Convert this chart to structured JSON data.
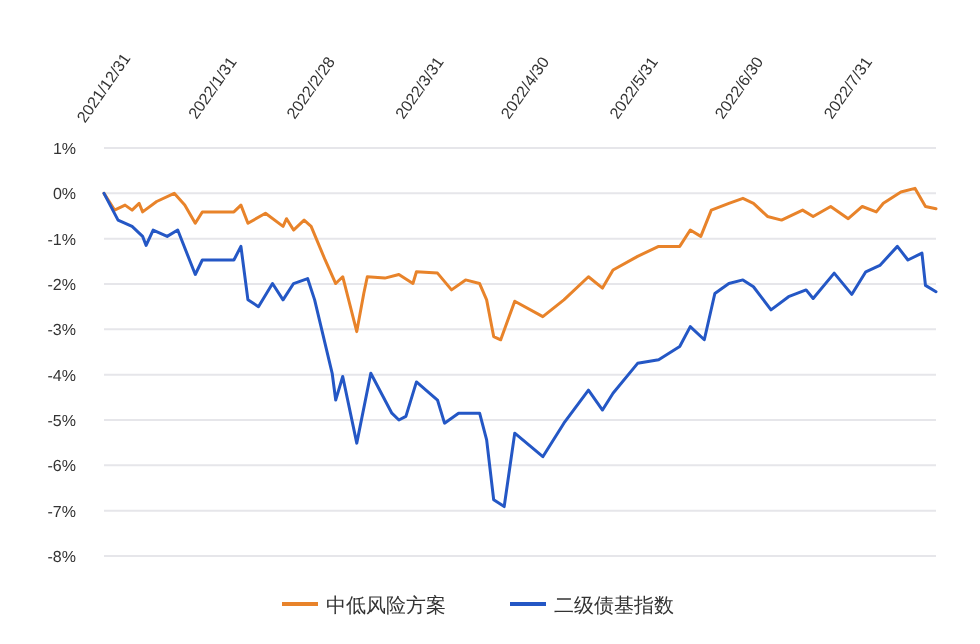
{
  "chart_data": {
    "type": "line",
    "xlim": [
      "2021-12-31",
      "2022-08-25"
    ],
    "ylim": [
      -8,
      1
    ],
    "xticks": [
      {
        "value": "2021-12-31",
        "label": "2021/12/31"
      },
      {
        "value": "2022-01-31",
        "label": "2022/1/31"
      },
      {
        "value": "2022-02-28",
        "label": "2022/2/28"
      },
      {
        "value": "2022-03-31",
        "label": "2022/3/31"
      },
      {
        "value": "2022-04-30",
        "label": "2022/4/30"
      },
      {
        "value": "2022-05-31",
        "label": "2022/5/31"
      },
      {
        "value": "2022-06-30",
        "label": "2022/6/30"
      },
      {
        "value": "2022-07-31",
        "label": "2022/7/31"
      }
    ],
    "yticks": [
      {
        "value": 1,
        "label": "1%"
      },
      {
        "value": 0,
        "label": "0%"
      },
      {
        "value": -1,
        "label": "-1%"
      },
      {
        "value": -2,
        "label": "-2%"
      },
      {
        "value": -3,
        "label": "-3%"
      },
      {
        "value": -4,
        "label": "-4%"
      },
      {
        "value": -5,
        "label": "-5%"
      },
      {
        "value": -6,
        "label": "-6%"
      },
      {
        "value": -7,
        "label": "-7%"
      },
      {
        "value": -8,
        "label": "-8%"
      }
    ],
    "grid": "y",
    "legend": "bottom",
    "series": [
      {
        "name": "中低风险方案",
        "color": "#e8832a",
        "x": [
          "2021-12-31",
          "2022-01-03",
          "2022-01-06",
          "2022-01-08",
          "2022-01-10",
          "2022-01-11",
          "2022-01-15",
          "2022-01-20",
          "2022-01-23",
          "2022-01-26",
          "2022-01-28",
          "2022-02-06",
          "2022-02-08",
          "2022-02-10",
          "2022-02-15",
          "2022-02-20",
          "2022-02-21",
          "2022-02-23",
          "2022-02-26",
          "2022-02-28",
          "2022-03-04",
          "2022-03-07",
          "2022-03-09",
          "2022-03-13",
          "2022-03-15",
          "2022-03-16",
          "2022-03-21",
          "2022-03-25",
          "2022-03-29",
          "2022-03-30",
          "2022-04-05",
          "2022-04-09",
          "2022-04-13",
          "2022-04-17",
          "2022-04-19",
          "2022-04-21",
          "2022-04-23",
          "2022-04-27",
          "2022-05-05",
          "2022-05-11",
          "2022-05-18",
          "2022-05-22",
          "2022-05-25",
          "2022-06-01",
          "2022-06-07",
          "2022-06-13",
          "2022-06-16",
          "2022-06-19",
          "2022-06-22",
          "2022-06-27",
          "2022-07-01",
          "2022-07-04",
          "2022-07-08",
          "2022-07-12",
          "2022-07-18",
          "2022-07-21",
          "2022-07-26",
          "2022-07-31",
          "2022-08-04",
          "2022-08-08",
          "2022-08-10",
          "2022-08-15",
          "2022-08-19",
          "2022-08-22",
          "2022-08-25"
        ],
        "values": [
          0,
          -0.37,
          -0.26,
          -0.37,
          -0.22,
          -0.41,
          -0.18,
          0.0,
          -0.26,
          -0.66,
          -0.41,
          -0.41,
          -0.26,
          -0.66,
          -0.44,
          -0.73,
          -0.56,
          -0.81,
          -0.59,
          -0.73,
          -1.47,
          -1.99,
          -1.84,
          -3.05,
          -2.21,
          -1.84,
          -1.87,
          -1.79,
          -1.99,
          -1.73,
          -1.76,
          -2.13,
          -1.91,
          -1.99,
          -2.35,
          -3.16,
          -3.23,
          -2.38,
          -2.72,
          -2.35,
          -1.84,
          -2.09,
          -1.69,
          -1.39,
          -1.17,
          -1.17,
          -0.81,
          -0.95,
          -0.37,
          -0.22,
          -0.11,
          -0.22,
          -0.51,
          -0.59,
          -0.37,
          -0.51,
          -0.29,
          -0.56,
          -0.29,
          -0.41,
          -0.22,
          0.03,
          0.11,
          -0.29,
          -0.34
        ]
      },
      {
        "name": "二级债基指数",
        "color": "#2457c5",
        "x": [
          "2021-12-31",
          "2022-01-04",
          "2022-01-08",
          "2022-01-11",
          "2022-01-12",
          "2022-01-14",
          "2022-01-18",
          "2022-01-21",
          "2022-01-26",
          "2022-01-28",
          "2022-02-06",
          "2022-02-08",
          "2022-02-10",
          "2022-02-13",
          "2022-02-17",
          "2022-02-20",
          "2022-02-23",
          "2022-02-27",
          "2022-03-01",
          "2022-03-06",
          "2022-03-07",
          "2022-03-09",
          "2022-03-13",
          "2022-03-17",
          "2022-03-23",
          "2022-03-25",
          "2022-03-27",
          "2022-03-30",
          "2022-04-05",
          "2022-04-07",
          "2022-04-11",
          "2022-04-17",
          "2022-04-19",
          "2022-04-21",
          "2022-04-24",
          "2022-04-27",
          "2022-05-05",
          "2022-05-11",
          "2022-05-18",
          "2022-05-22",
          "2022-05-25",
          "2022-06-01",
          "2022-06-07",
          "2022-06-13",
          "2022-06-16",
          "2022-06-20",
          "2022-06-23",
          "2022-06-27",
          "2022-07-01",
          "2022-07-04",
          "2022-07-09",
          "2022-07-14",
          "2022-07-19",
          "2022-07-21",
          "2022-07-27",
          "2022-08-01",
          "2022-08-05",
          "2022-08-09",
          "2022-08-14",
          "2022-08-17",
          "2022-08-21",
          "2022-08-22",
          "2022-08-25"
        ],
        "values": [
          0,
          -0.59,
          -0.73,
          -0.95,
          -1.15,
          -0.81,
          -0.95,
          -0.81,
          -1.79,
          -1.47,
          -1.47,
          -1.17,
          -2.35,
          -2.5,
          -1.99,
          -2.35,
          -1.99,
          -1.88,
          -2.35,
          -3.97,
          -4.56,
          -4.04,
          -5.51,
          -3.97,
          -4.85,
          -5.0,
          -4.92,
          -4.16,
          -4.56,
          -5.07,
          -4.85,
          -4.85,
          -5.44,
          -6.76,
          -6.91,
          -5.29,
          -5.81,
          -5.07,
          -4.34,
          -4.78,
          -4.41,
          -3.75,
          -3.67,
          -3.38,
          -2.94,
          -3.23,
          -2.21,
          -1.99,
          -1.91,
          -2.06,
          -2.57,
          -2.28,
          -2.13,
          -2.32,
          -1.76,
          -2.23,
          -1.73,
          -1.59,
          -1.17,
          -1.47,
          -1.32,
          -2.03,
          -2.17
        ]
      }
    ]
  }
}
